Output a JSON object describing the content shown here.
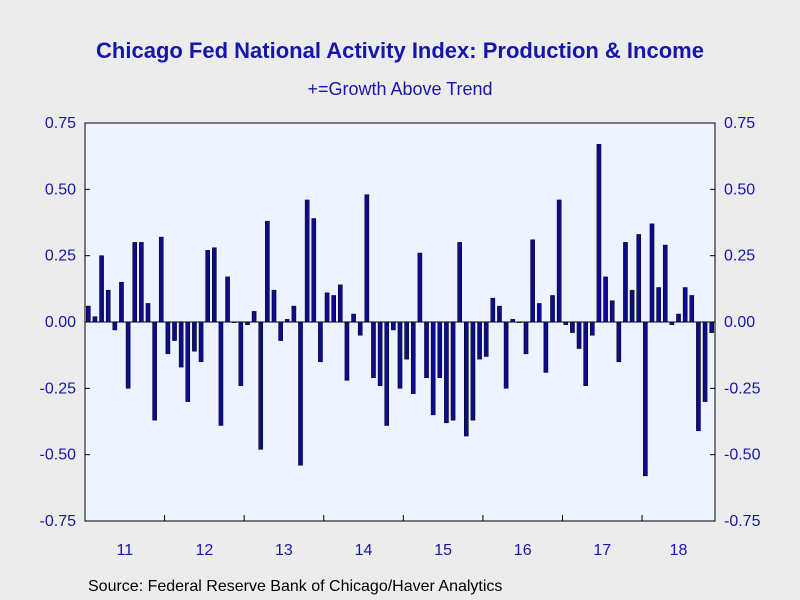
{
  "chart_data": {
    "type": "bar",
    "title": "Chicago Fed National Activity Index: Production & Income",
    "subtitle": "+=Growth Above Trend",
    "source": "Source:  Federal Reserve Bank of Chicago/Haver Analytics",
    "ylim": [
      -0.75,
      0.75
    ],
    "yticks": [
      "0.75",
      "0.50",
      "0.25",
      "0.00",
      "-0.25",
      "-0.50",
      "-0.75"
    ],
    "ytick_values": [
      0.75,
      0.5,
      0.25,
      0,
      -0.25,
      -0.5,
      -0.75
    ],
    "year_labels": [
      "11",
      "12",
      "13",
      "14",
      "15",
      "16",
      "17",
      "18"
    ],
    "start": "2011-01",
    "end": "2018-11",
    "bar_color": "#0c0c8c",
    "plot_background": "#eef4ff",
    "text_color": "#1616a8",
    "series": [
      {
        "values": [
          0.06,
          0.02,
          0.25,
          0.12,
          -0.03,
          0.15,
          -0.25,
          0.3,
          0.3,
          0.07,
          -0.37,
          0.32,
          -0.12,
          -0.07,
          -0.17,
          -0.3,
          -0.11,
          -0.15,
          0.27,
          0.28,
          -0.39,
          0.17,
          0.0,
          -0.24,
          -0.01,
          0.04,
          -0.48,
          0.38,
          0.12,
          -0.07,
          0.01,
          0.06,
          -0.54,
          0.46,
          0.39,
          -0.15,
          0.11,
          0.1,
          0.14,
          -0.22,
          0.03,
          -0.05,
          0.48,
          -0.21,
          -0.24,
          -0.39,
          -0.03,
          -0.25,
          -0.14,
          -0.27,
          0.26,
          -0.21,
          -0.35,
          -0.21,
          -0.38,
          -0.37,
          0.3,
          -0.43,
          -0.37,
          -0.14,
          -0.13,
          0.09,
          0.06,
          -0.25,
          0.01,
          0.0,
          -0.12,
          0.31,
          0.07,
          -0.19,
          0.1,
          0.46,
          -0.01,
          -0.04,
          -0.1,
          -0.24,
          -0.05,
          0.67,
          0.17,
          0.08,
          -0.15,
          0.3,
          0.12,
          0.33,
          -0.58,
          0.37,
          0.13,
          0.29,
          -0.01,
          0.03,
          0.13,
          0.1,
          -0.41,
          -0.3,
          -0.04
        ]
      }
    ]
  }
}
